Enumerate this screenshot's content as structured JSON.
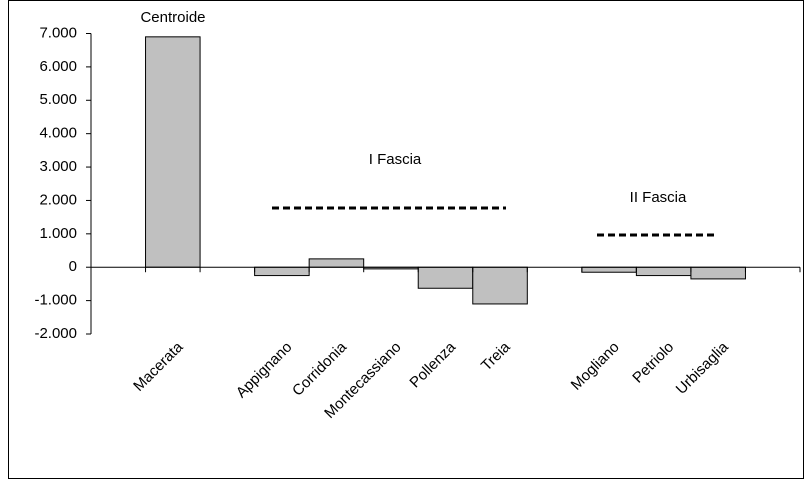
{
  "chart_data": {
    "type": "bar",
    "categories": [
      null,
      "Macerata",
      null,
      "Appignano",
      "Corridonia",
      "Montecassiano",
      "Pollenza",
      "Treia",
      null,
      "Mogliano",
      "Petriolo",
      "Urbisaglia",
      null
    ],
    "values": [
      null,
      6900,
      null,
      -250,
      250,
      -50,
      -630,
      -1100,
      null,
      -150,
      -250,
      -350,
      null
    ],
    "color": "#c0c0c0",
    "ylim": [
      -2000,
      7000
    ],
    "yticks": [
      {
        "value": -2000,
        "label": "-2.000"
      },
      {
        "value": -1000,
        "label": "-1.000"
      },
      0,
      {
        "value": 1000,
        "label": "1.000"
      },
      {
        "value": 2000,
        "label": "2.000"
      },
      {
        "value": 3000,
        "label": "3.000"
      },
      {
        "value": 4000,
        "label": "4.000"
      },
      {
        "value": 5000,
        "label": "5.000"
      },
      {
        "value": 6000,
        "label": "6.000"
      },
      {
        "value": 7000,
        "label": "7.000"
      }
    ],
    "annotations": [
      "Centroide",
      "I Fascia",
      "II Fascia"
    ],
    "grid": false
  }
}
